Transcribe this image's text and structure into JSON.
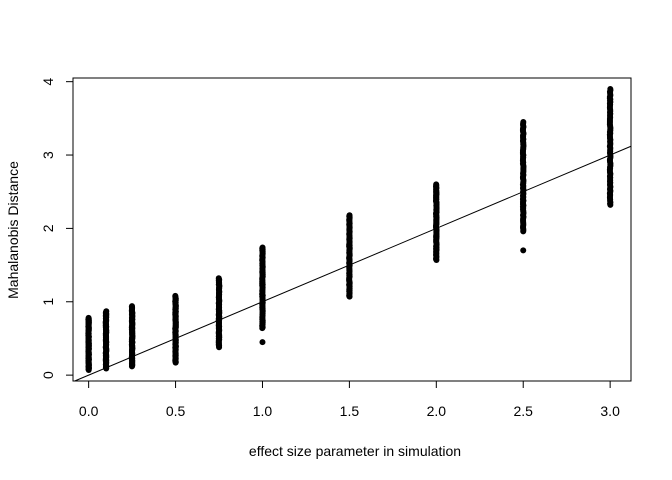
{
  "chart_data": {
    "type": "scatter",
    "title": "",
    "xlabel": "effect size parameter in simulation",
    "ylabel": "Mahalanobis Distance",
    "xlim": [
      -0.09,
      3.12
    ],
    "ylim": [
      -0.08,
      4.05
    ],
    "x_ticks": [
      0.0,
      0.5,
      1.0,
      1.5,
      2.0,
      2.5,
      3.0
    ],
    "x_tick_labels": [
      "0.0",
      "0.5",
      "1.0",
      "1.5",
      "2.0",
      "2.5",
      "3.0"
    ],
    "y_ticks": [
      0,
      1,
      2,
      3,
      4
    ],
    "y_tick_labels": [
      "0",
      "1",
      "2",
      "3",
      "4"
    ],
    "grid": false,
    "legend": "none",
    "point_color": "#000000",
    "reference_line": {
      "intercept": 0,
      "slope": 1,
      "color": "#000000"
    },
    "groups": [
      {
        "x": 0.0,
        "y_min": 0.07,
        "y_max": 0.78,
        "outliers": []
      },
      {
        "x": 0.1,
        "y_min": 0.09,
        "y_max": 0.87,
        "outliers": []
      },
      {
        "x": 0.25,
        "y_min": 0.12,
        "y_max": 0.94,
        "outliers": []
      },
      {
        "x": 0.5,
        "y_min": 0.17,
        "y_max": 1.08,
        "outliers": []
      },
      {
        "x": 0.75,
        "y_min": 0.38,
        "y_max": 1.32,
        "outliers": []
      },
      {
        "x": 1.0,
        "y_min": 0.64,
        "y_max": 1.74,
        "outliers": [
          0.45
        ]
      },
      {
        "x": 1.5,
        "y_min": 1.07,
        "y_max": 2.18,
        "outliers": []
      },
      {
        "x": 2.0,
        "y_min": 1.57,
        "y_max": 2.6,
        "outliers": []
      },
      {
        "x": 2.5,
        "y_min": 1.96,
        "y_max": 3.45,
        "outliers": [
          1.7
        ]
      },
      {
        "x": 3.0,
        "y_min": 2.32,
        "y_max": 3.9,
        "outliers": []
      }
    ]
  }
}
